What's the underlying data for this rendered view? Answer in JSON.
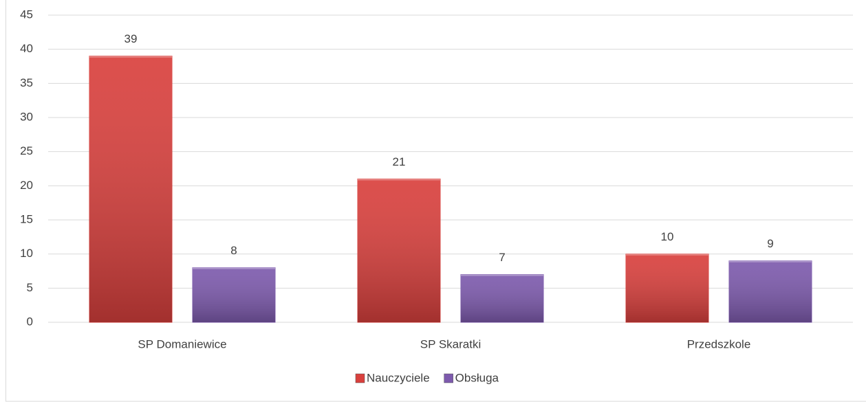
{
  "chart_data": {
    "type": "bar",
    "categories": [
      "SP Domaniewice",
      "SP Skaratki",
      "Przedszkole"
    ],
    "series": [
      {
        "name": "Nauczyciele",
        "color": "#d9403d",
        "values": [
          39,
          21,
          10
        ]
      },
      {
        "name": "Obsługa",
        "color": "#7d5aad",
        "values": [
          8,
          7,
          9
        ]
      }
    ],
    "ylim": [
      0,
      45
    ],
    "yticks": [
      0,
      5,
      10,
      15,
      20,
      25,
      30,
      35,
      40,
      45
    ],
    "grid": true,
    "legend": "bottom"
  }
}
